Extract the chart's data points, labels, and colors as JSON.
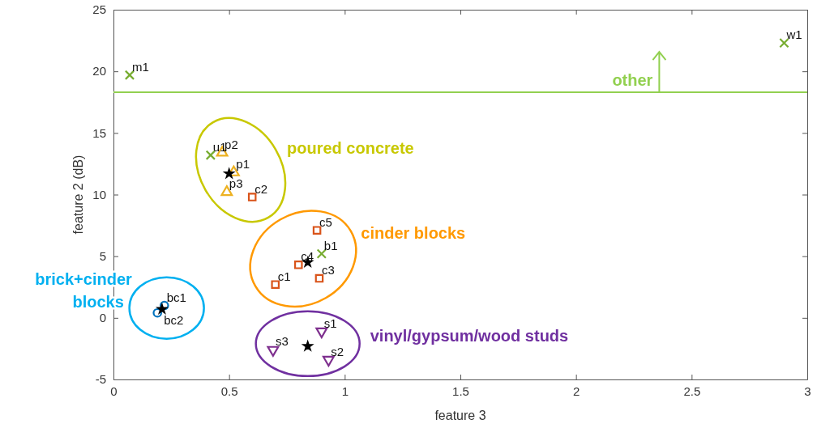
{
  "chart_data": {
    "type": "scatter",
    "xlabel": "feature 3",
    "ylabel": "feature 2 (dB)",
    "xlim": [
      0,
      3
    ],
    "xticks": [
      0,
      0.5,
      1,
      1.5,
      2,
      2.5,
      3
    ],
    "ylim": [
      -5,
      25
    ],
    "yticks": [
      -5,
      0,
      5,
      10,
      15,
      20,
      25
    ],
    "grid": false,
    "series": [
      {
        "color": "#77ac30",
        "marker": "cross",
        "x": [
          0.07,
          2.9,
          0.42,
          0.9
        ],
        "values": [
          19.7,
          22.3,
          13.2,
          5.2
        ]
      },
      {
        "color": "#edb120",
        "marker": "triangle",
        "x": [
          0.52,
          0.47,
          0.49
        ],
        "values": [
          11.8,
          13.4,
          10.2
        ]
      },
      {
        "color": "#d95319",
        "marker": "square",
        "x": [
          0.7,
          0.6,
          0.89,
          0.8,
          0.88
        ],
        "values": [
          2.7,
          9.8,
          3.2,
          4.3,
          7.1
        ]
      },
      {
        "color": "#0072bd",
        "marker": "circle",
        "x": [
          0.22,
          0.19
        ],
        "values": [
          1.0,
          0.4
        ]
      },
      {
        "color": "#7e2f8e",
        "marker": "triangle-down",
        "x": [
          0.9,
          0.93,
          0.69
        ],
        "values": [
          -1.1,
          -3.4,
          -2.6
        ]
      },
      {
        "color": "#000000",
        "marker": "star",
        "x": [
          0.5,
          0.84,
          0.21,
          0.84
        ],
        "values": [
          11.7,
          4.5,
          0.7,
          -2.3
        ]
      }
    ],
    "ref_lines": [
      {
        "axis": "y",
        "value": 18.3,
        "label": "other",
        "color": "#92d050"
      }
    ],
    "annotations": [
      {
        "text": "m1",
        "x": 0.07,
        "y": 19.7
      },
      {
        "text": "w1",
        "x": 2.9,
        "y": 22.3
      },
      {
        "text": "u1",
        "x": 0.42,
        "y": 13.2
      },
      {
        "text": "b1",
        "x": 0.9,
        "y": 5.2
      },
      {
        "text": "p1",
        "x": 0.52,
        "y": 11.8
      },
      {
        "text": "p2",
        "x": 0.47,
        "y": 13.4
      },
      {
        "text": "p3",
        "x": 0.49,
        "y": 10.2
      },
      {
        "text": "c1",
        "x": 0.7,
        "y": 2.7
      },
      {
        "text": "c2",
        "x": 0.6,
        "y": 9.8
      },
      {
        "text": "c3",
        "x": 0.89,
        "y": 3.2
      },
      {
        "text": "c4",
        "x": 0.8,
        "y": 4.3
      },
      {
        "text": "c5",
        "x": 0.88,
        "y": 7.1
      },
      {
        "text": "bc1",
        "x": 0.22,
        "y": 1.0
      },
      {
        "text": "bc2",
        "x": 0.19,
        "y": 0.4
      },
      {
        "text": "s1",
        "x": 0.9,
        "y": -1.1
      },
      {
        "text": "s2",
        "x": 0.93,
        "y": -3.4
      },
      {
        "text": "s3",
        "x": 0.69,
        "y": -2.6
      },
      "poured concrete",
      "cinder blocks",
      "brick+cinder blocks",
      "vinyl/gypsum/wood studs"
    ]
  }
}
